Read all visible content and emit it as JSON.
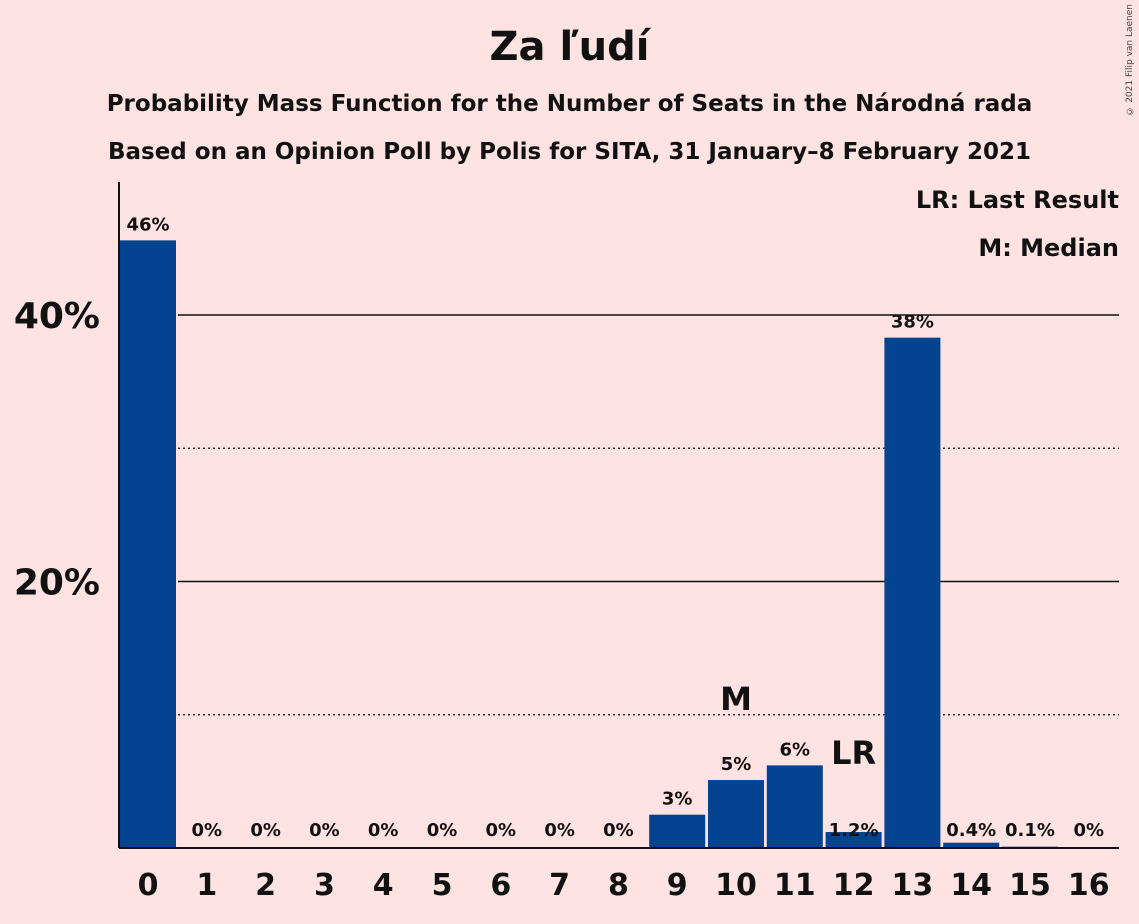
{
  "chart_data": {
    "type": "bar",
    "title": "Za ľudí",
    "subtitle": "Probability Mass Function for the Number of Seats in the Národná rada",
    "subtitle2": "Based on an Opinion Poll by Polis for SITA, 31 January–8 February 2021",
    "copyright": "© 2021 Filip van Laenen",
    "categories": [
      "0",
      "1",
      "2",
      "3",
      "4",
      "5",
      "6",
      "7",
      "8",
      "9",
      "10",
      "11",
      "12",
      "13",
      "14",
      "15",
      "16"
    ],
    "values": [
      45.6,
      0,
      0,
      0,
      0,
      0,
      0,
      0,
      0,
      2.5,
      5.1,
      6.2,
      1.2,
      38.3,
      0.4,
      0.1,
      0
    ],
    "value_labels": [
      "46%",
      "0%",
      "0%",
      "0%",
      "0%",
      "0%",
      "0%",
      "0%",
      "0%",
      "3%",
      "5%",
      "6%",
      "1.2%",
      "38%",
      "0.4%",
      "0.1%",
      "0%"
    ],
    "ylim": [
      0,
      50
    ],
    "yticks": [
      {
        "value": 20,
        "label": "20%"
      },
      {
        "value": 40,
        "label": "40%"
      }
    ],
    "minor_gridlines": [
      10,
      30
    ],
    "median": {
      "category": "10",
      "label": "M"
    },
    "last_result": {
      "category": "12",
      "label": "LR"
    },
    "legend": [
      "LR: Last Result",
      "M: Median"
    ],
    "legend_position": "top-right",
    "bar_color": "#03438F",
    "background_color": "#FFE2E2"
  }
}
